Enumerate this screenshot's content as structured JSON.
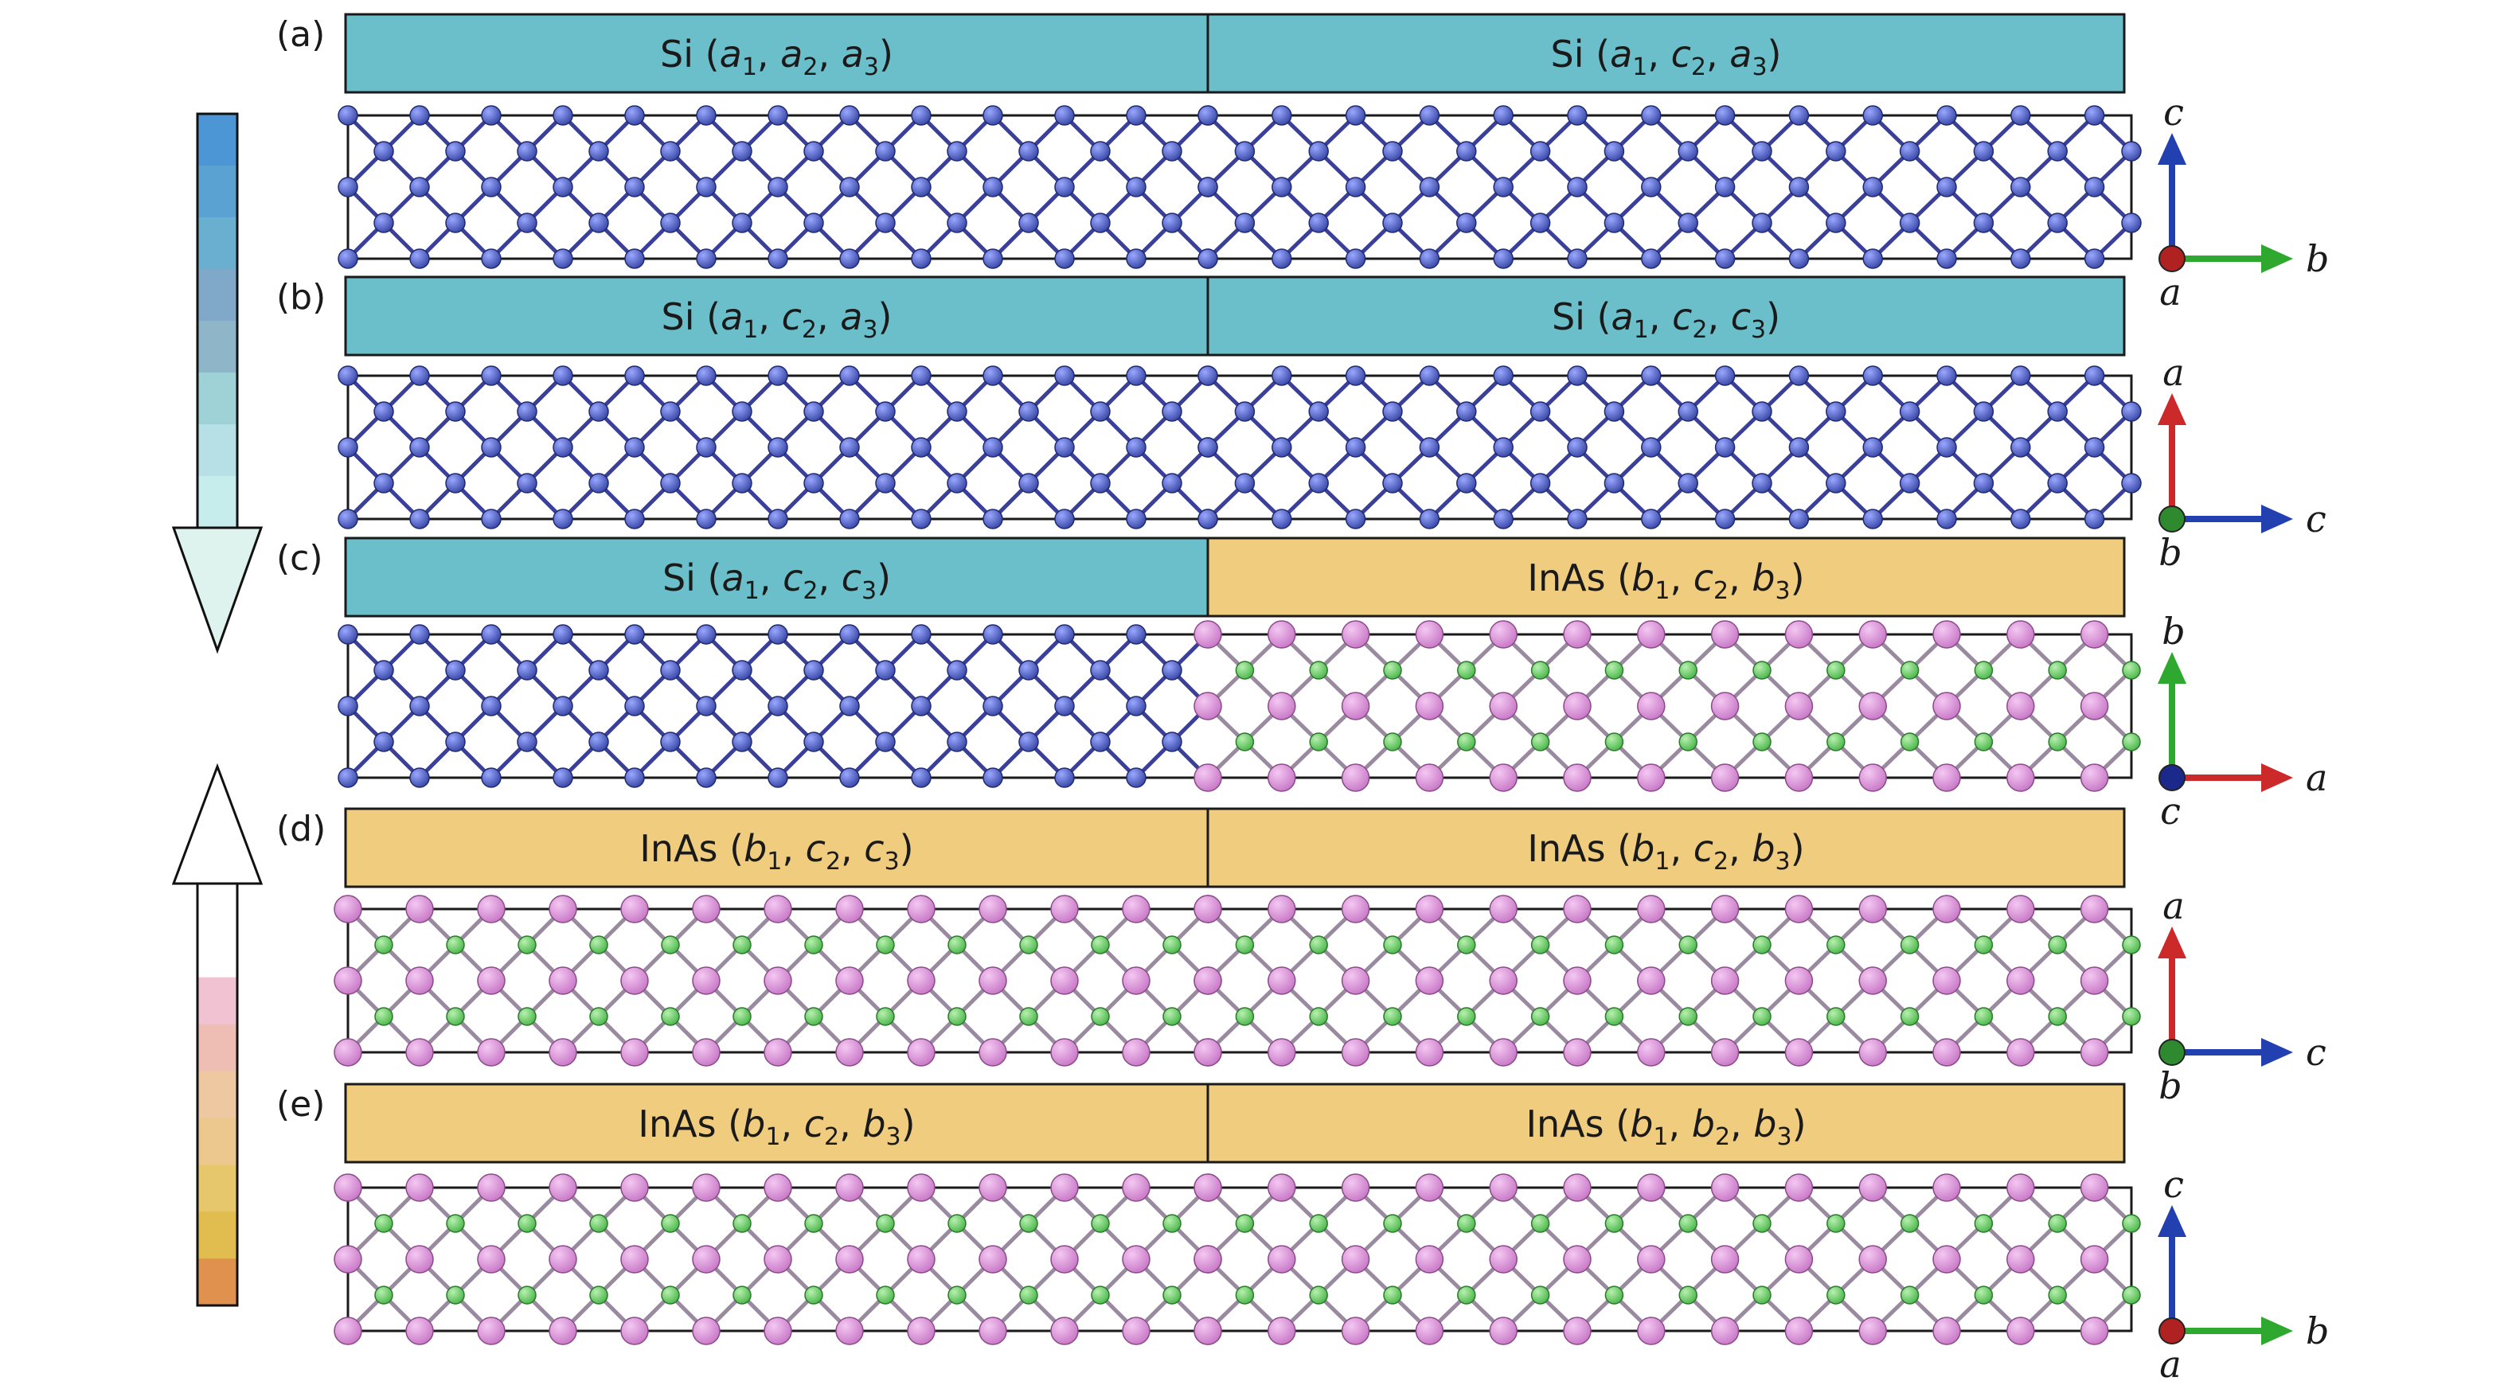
{
  "panels": [
    {
      "tag": "(a)",
      "left": {
        "material": "Si",
        "args": [
          [
            "a",
            "1"
          ],
          [
            "a",
            "2"
          ],
          [
            "a",
            "3"
          ]
        ]
      },
      "right": {
        "material": "Si",
        "args": [
          [
            "a",
            "1"
          ],
          [
            "c",
            "2"
          ],
          [
            "a",
            "3"
          ]
        ]
      },
      "left_kind": "si",
      "right_kind": "si",
      "axes": {
        "up": "c",
        "right": "b",
        "center": "a",
        "up_color": "#2340b0",
        "right_color": "#2ea82e",
        "center_color": "#b02222"
      }
    },
    {
      "tag": "(b)",
      "left": {
        "material": "Si",
        "args": [
          [
            "a",
            "1"
          ],
          [
            "c",
            "2"
          ],
          [
            "a",
            "3"
          ]
        ]
      },
      "right": {
        "material": "Si",
        "args": [
          [
            "a",
            "1"
          ],
          [
            "c",
            "2"
          ],
          [
            "c",
            "3"
          ]
        ]
      },
      "left_kind": "si",
      "right_kind": "si",
      "axes": {
        "up": "a",
        "right": "c",
        "center": "b",
        "up_color": "#cc2a2a",
        "right_color": "#2340b0",
        "center_color": "#2f8a2f"
      }
    },
    {
      "tag": "(c)",
      "left": {
        "material": "Si",
        "args": [
          [
            "a",
            "1"
          ],
          [
            "c",
            "2"
          ],
          [
            "c",
            "3"
          ]
        ]
      },
      "right": {
        "material": "InAs",
        "args": [
          [
            "b",
            "1"
          ],
          [
            "c",
            "2"
          ],
          [
            "b",
            "3"
          ]
        ]
      },
      "left_kind": "si",
      "right_kind": "inas",
      "axes": {
        "up": "b",
        "right": "a",
        "center": "c",
        "up_color": "#2ea82e",
        "right_color": "#cc2a2a",
        "center_color": "#1b2a8a"
      }
    },
    {
      "tag": "(d)",
      "left": {
        "material": "InAs",
        "args": [
          [
            "b",
            "1"
          ],
          [
            "c",
            "2"
          ],
          [
            "c",
            "3"
          ]
        ]
      },
      "right": {
        "material": "InAs",
        "args": [
          [
            "b",
            "1"
          ],
          [
            "c",
            "2"
          ],
          [
            "b",
            "3"
          ]
        ]
      },
      "left_kind": "inas",
      "right_kind": "inas",
      "axes": {
        "up": "a",
        "right": "c",
        "center": "b",
        "up_color": "#cc2a2a",
        "right_color": "#2340b0",
        "center_color": "#2f8a2f"
      }
    },
    {
      "tag": "(e)",
      "left": {
        "material": "InAs",
        "args": [
          [
            "b",
            "1"
          ],
          [
            "c",
            "2"
          ],
          [
            "b",
            "3"
          ]
        ]
      },
      "right": {
        "material": "InAs",
        "args": [
          [
            "b",
            "1"
          ],
          [
            "b",
            "2"
          ],
          [
            "b",
            "3"
          ]
        ]
      },
      "left_kind": "inas",
      "right_kind": "inas",
      "axes": {
        "up": "c",
        "right": "b",
        "center": "a",
        "up_color": "#2340b0",
        "right_color": "#2ea82e",
        "center_color": "#b02222"
      }
    }
  ],
  "colors": {
    "si_header": "#6bbfca",
    "inas_header": "#f0cd7e",
    "si_atom": "#3b4aa8",
    "si_bond": "#3a3f9a",
    "in_atom": "#c97ac7",
    "as_atom": "#4eb84e",
    "inas_bond": "#9a8aa0",
    "cell_border": "#1a1a1a"
  },
  "side_arrows": {
    "down_colors": [
      "#4c96d6",
      "#5aa2d2",
      "#6aaed0",
      "#80a8c8",
      "#8fb5c8",
      "#9fd2d6",
      "#b7dfe6",
      "#c6ecec",
      "#d8f2ee",
      "#e8e8e8"
    ],
    "up_colors": [
      "#f1c2d1",
      "#eebdb3",
      "#eec8a0",
      "#ecc88e",
      "#e6c76c",
      "#e0bd4e",
      "#e0914e"
    ]
  }
}
